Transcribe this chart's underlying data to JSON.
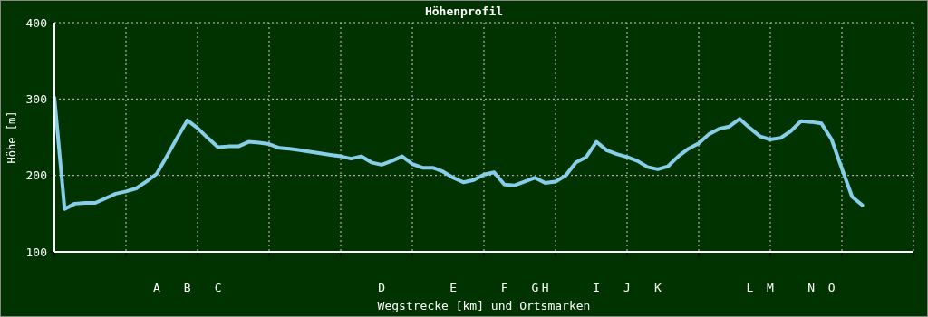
{
  "chart_data": {
    "type": "line",
    "title": "Höhenprofil",
    "xlabel": "Wegstrecke [km] und Ortsmarken",
    "ylabel": "Höhe [m]",
    "categories": [
      null,
      null,
      null,
      null,
      null,
      null,
      null,
      null,
      null,
      null,
      "A",
      null,
      null,
      "B",
      null,
      null,
      "C",
      null,
      null,
      null,
      null,
      null,
      null,
      null,
      null,
      null,
      null,
      null,
      null,
      null,
      null,
      null,
      "D",
      null,
      null,
      null,
      null,
      null,
      null,
      "E",
      null,
      null,
      null,
      null,
      "F",
      null,
      null,
      "G",
      "H",
      null,
      null,
      null,
      null,
      "I",
      null,
      null,
      "J",
      null,
      null,
      "K",
      null,
      null,
      null,
      null,
      null,
      null,
      null,
      null,
      "L",
      null,
      "M",
      null,
      null,
      null,
      "N",
      null,
      "O",
      null,
      null,
      null,
      null,
      null,
      null,
      null,
      null
    ],
    "series": [
      {
        "color": "#87ceeb",
        "values": [
          302,
          156,
          163,
          164,
          164,
          170,
          176,
          179,
          183,
          192,
          202,
          225,
          249,
          272,
          262,
          249,
          237,
          238,
          238,
          244,
          243,
          241,
          236,
          235,
          233,
          231,
          229,
          227,
          225,
          222,
          225,
          217,
          214,
          219,
          225,
          215,
          210,
          210,
          205,
          197,
          191,
          194,
          201,
          204,
          188,
          187,
          192,
          197,
          190,
          192,
          200,
          217,
          224,
          244,
          233,
          228,
          224,
          219,
          211,
          208,
          212,
          225,
          235,
          242,
          254,
          261,
          264,
          274,
          262,
          251,
          247,
          249,
          258,
          271,
          270,
          268,
          247,
          209,
          172,
          161,
          null,
          null,
          null,
          null,
          null
        ]
      }
    ],
    "ylim": [
      100,
      400
    ],
    "yticks": [
      100,
      200,
      300,
      400
    ],
    "grid": true
  }
}
